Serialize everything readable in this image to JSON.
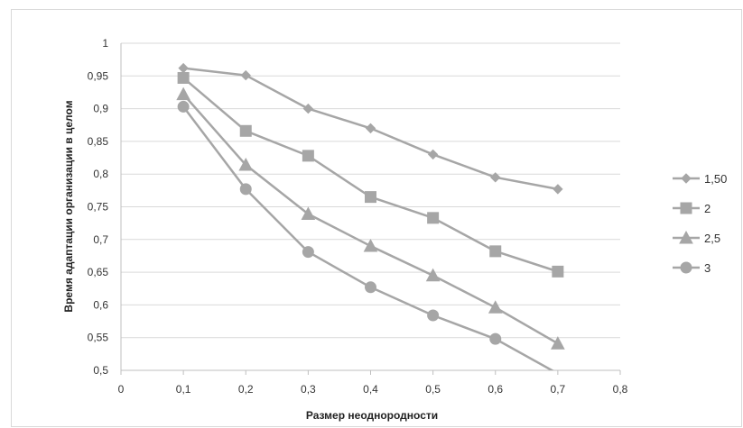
{
  "chart_data": {
    "type": "line",
    "title": "",
    "xlabel": "Размер неоднородности",
    "ylabel": "Время адаптации организации в целом",
    "xlim": [
      0,
      0.8
    ],
    "ylim": [
      0.5,
      1
    ],
    "x_ticks": [
      "0",
      "0,1",
      "0,2",
      "0,3",
      "0,4",
      "0,5",
      "0,6",
      "0,7",
      "0,8"
    ],
    "y_ticks": [
      "0,5",
      "0,55",
      "0,6",
      "0,65",
      "0,7",
      "0,75",
      "0,8",
      "0,85",
      "0,9",
      "0,95",
      "1"
    ],
    "grid": "horizontal",
    "legend_position": "right",
    "x": [
      0.1,
      0.2,
      0.3,
      0.4,
      0.5,
      0.6,
      0.7
    ],
    "series": [
      {
        "name": "1,50",
        "marker": "diamond",
        "values": [
          0.962,
          0.951,
          0.9,
          0.87,
          0.83,
          0.795,
          0.777
        ]
      },
      {
        "name": "2",
        "marker": "square",
        "values": [
          0.947,
          0.866,
          0.828,
          0.765,
          0.733,
          0.682,
          0.651
        ]
      },
      {
        "name": "2,5",
        "marker": "triangle",
        "values": [
          0.922,
          0.814,
          0.739,
          0.69,
          0.645,
          0.596,
          0.541
        ]
      },
      {
        "name": "3",
        "marker": "circle",
        "values": [
          0.903,
          0.777,
          0.681,
          0.627,
          0.584,
          0.548,
          0.495
        ]
      }
    ],
    "colors": {
      "line": "#a6a6a6",
      "grid": "#d9d9d9",
      "axis": "#bfbfbf"
    }
  }
}
